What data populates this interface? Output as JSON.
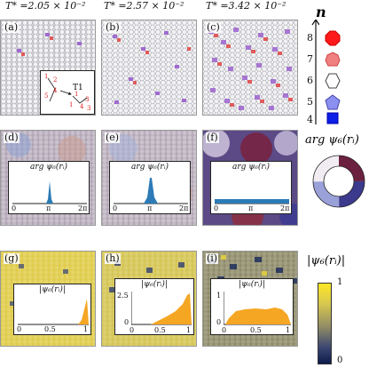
{
  "header": {
    "temps": [
      "T* =2.05 × 10⁻²",
      "T* =2.57 × 10⁻²",
      "T* =3.42 × 10⁻²"
    ]
  },
  "panels": {
    "a": "(a)",
    "b": "(b)",
    "c": "(c)",
    "d": "(d)",
    "e": "(e)",
    "f": "(f)",
    "g": "(g)",
    "h": "(h)",
    "i": "(i)"
  },
  "inset_a": {
    "label": "T1",
    "numbers": [
      "1",
      "2",
      "4",
      "5",
      "1",
      "3",
      "1",
      "4",
      "3"
    ]
  },
  "legend_n": {
    "title": "n",
    "items": [
      {
        "n": "8",
        "shape": "octagon",
        "color": "#ff1a1a"
      },
      {
        "n": "7",
        "shape": "heptagon",
        "color": "#f08080"
      },
      {
        "n": "6",
        "shape": "hexagon",
        "color": "#ffffff"
      },
      {
        "n": "5",
        "shape": "pentagon",
        "color": "#8a8ff0"
      },
      {
        "n": "4",
        "shape": "square",
        "color": "#0b1fe6"
      }
    ]
  },
  "phase_legend": {
    "label": "arg ψ₆(rᵢ)"
  },
  "mag_legend": {
    "label": "|ψ₆(rᵢ)|",
    "ticks": [
      "1",
      "0"
    ]
  },
  "arg_insets": {
    "title": "arg ψ₆(rᵢ)",
    "ticks": [
      "0",
      "π",
      "2π"
    ]
  },
  "mag_insets": {
    "title": "|ψ₆(rᵢ)|",
    "g_ticks_x": [
      "0",
      "0.5",
      "1"
    ],
    "h_ticks_x": [
      "0",
      "0.5",
      "1"
    ],
    "h_ticks_y": [
      "2.5",
      "0"
    ],
    "i_ticks_x": [
      "0",
      "0.5",
      "1"
    ],
    "i_ticks_y": [
      "1",
      "0"
    ]
  },
  "colors": {
    "defect_purple": "#a06ad0",
    "defect_red": "#e05a5a",
    "hist_blue": "#2c7bb6",
    "hist_orange": "#f5a623",
    "cb_top": "#fde725",
    "cb_bottom": "#0d1b4c"
  }
}
